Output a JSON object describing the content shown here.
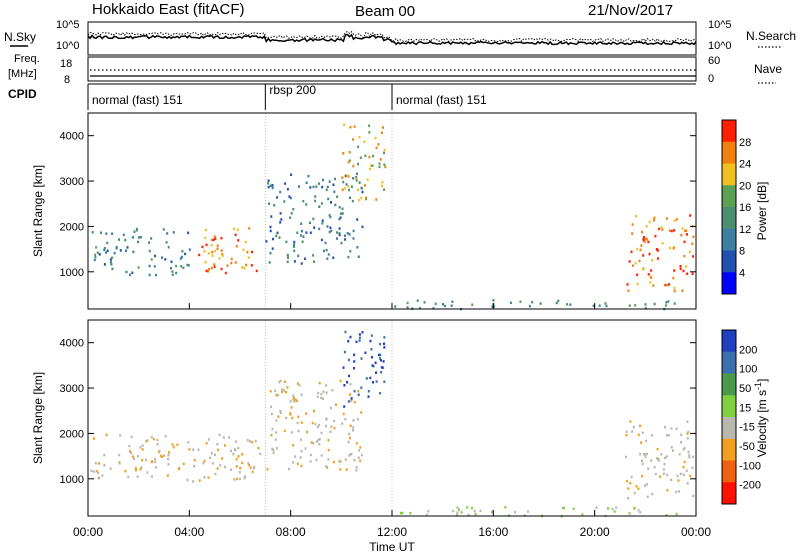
{
  "header": {
    "station": "Hokkaido East (fitACF)",
    "beam": "Beam 00",
    "date": "21/Nov/2017"
  },
  "top_panels": {
    "nsky_label": "N.Sky",
    "nsearch_label": "N.Search",
    "nsky_ticks": [
      "10^5",
      "10^0"
    ],
    "nsearch_ticks": [
      "10^5",
      "10^0"
    ],
    "freq_label": "Freq.",
    "freq_unit": "[MHz]",
    "freq_ticks": [
      "18",
      "8"
    ],
    "nave_label": "Nave",
    "nave_ticks": [
      "60",
      "0"
    ],
    "cpid_label": "CPID",
    "cpid_segments": [
      {
        "label": "normal (fast) 151",
        "start": 0,
        "end": 7
      },
      {
        "label": "rbsp 200",
        "start": 7,
        "end": 12
      },
      {
        "label": "normal (fast) 151",
        "start": 12,
        "end": 24
      }
    ]
  },
  "x_axis": {
    "label": "Time UT",
    "ticks": [
      "00:00",
      "04:00",
      "08:00",
      "12:00",
      "16:00",
      "20:00",
      "00:00"
    ]
  },
  "colors": {
    "power": [
      "#0000ff",
      "#2050b0",
      "#3d7fa0",
      "#4a9070",
      "#5aa055",
      "#f0c020",
      "#f08010",
      "#ff2000"
    ],
    "velocity": [
      "#2040c0",
      "#3a70b0",
      "#4a9a4a",
      "#80d040",
      "#b8b8b0",
      "#f0a020",
      "#f06010",
      "#ff1000"
    ],
    "background_gray": "#c8c8c0"
  },
  "chart_data": [
    {
      "type": "heatmap",
      "title": "Power",
      "ylabel": "Slant Range [km]",
      "xlabel": "",
      "xlim": [
        0,
        24
      ],
      "ylim": [
        180,
        4500
      ],
      "yticks": [
        1000,
        2000,
        3000,
        4000
      ],
      "colorbar": {
        "label": "Power [dB]",
        "ticks": [
          28,
          24,
          20,
          16,
          12,
          8,
          4
        ],
        "range": [
          0,
          31
        ]
      },
      "echo_regions": [
        {
          "name": "early band",
          "t": [
            0.1,
            4.0
          ],
          "r": [
            950,
            2000
          ],
          "level": 12
        },
        {
          "name": "strong ridge",
          "t": [
            4.0,
            6.8
          ],
          "r": [
            1000,
            2000
          ],
          "level": 26
        },
        {
          "name": "rbsp arcs",
          "t": [
            7.0,
            10.8
          ],
          "r": [
            1200,
            3200
          ],
          "level": 10
        },
        {
          "name": "high echoes",
          "t": [
            10.0,
            11.7
          ],
          "r": [
            2600,
            4300
          ],
          "level": 22
        },
        {
          "name": "near range",
          "t": [
            12.0,
            23.5
          ],
          "r": [
            200,
            400
          ],
          "level": 14
        },
        {
          "name": "evening band",
          "t": [
            21.2,
            23.9
          ],
          "r": [
            600,
            2300
          ],
          "level": 26
        }
      ]
    },
    {
      "type": "heatmap",
      "title": "Velocity",
      "ylabel": "Slant Range [km]",
      "xlabel": "Time UT",
      "xlim": [
        0,
        24
      ],
      "ylim": [
        180,
        4500
      ],
      "yticks": [
        1000,
        2000,
        3000,
        4000
      ],
      "colorbar": {
        "label": "Velocity [m s^-1]",
        "ticks": [
          200,
          100,
          50,
          15,
          -15,
          -50,
          -100,
          -200
        ],
        "range": [
          -250,
          250
        ]
      },
      "echo_regions": [
        {
          "name": "early band",
          "t": [
            0.1,
            6.8
          ],
          "r": [
            950,
            2000
          ],
          "velocity": 0
        },
        {
          "name": "rbsp arcs",
          "t": [
            7.0,
            10.8
          ],
          "r": [
            1200,
            3200
          ],
          "velocity": 0
        },
        {
          "name": "high echoes",
          "t": [
            10.0,
            11.7
          ],
          "r": [
            2600,
            4300
          ],
          "velocity": 150
        },
        {
          "name": "near range",
          "t": [
            12.0,
            23.5
          ],
          "r": [
            200,
            400
          ],
          "velocity": 30
        },
        {
          "name": "evening band",
          "t": [
            21.2,
            23.9
          ],
          "r": [
            600,
            2300
          ],
          "velocity": 0
        }
      ]
    }
  ]
}
